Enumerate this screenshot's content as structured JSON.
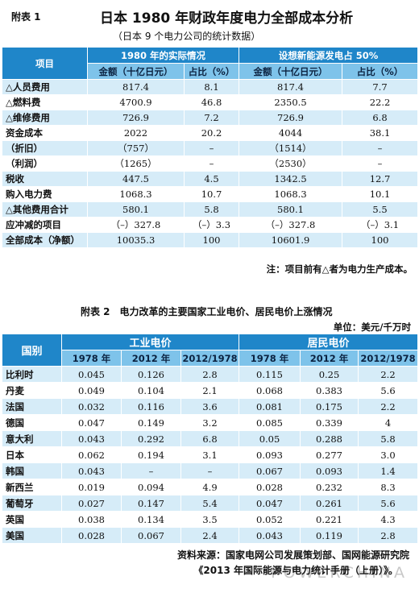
{
  "table1": {
    "tag": "附表 1",
    "title": "日本 1980 年财政年度电力全部成本分析",
    "subtitle": "（日本 9 个电力公司的统计数据）",
    "col_item": "项目",
    "group_a": "1980 年的实际情况",
    "group_b": "设想新能源发电占 50%",
    "sub_amount": "金额（十亿日元）",
    "sub_ratio": "占比（%）",
    "rows": [
      {
        "label": "△人员费用",
        "a1": "817.4",
        "a2": "8.1",
        "b1": "817.4",
        "b2": "7.7"
      },
      {
        "label": "△燃料费",
        "a1": "4700.9",
        "a2": "46.8",
        "b1": "2350.5",
        "b2": "22.2"
      },
      {
        "label": "△维修费用",
        "a1": "726.9",
        "a2": "7.2",
        "b1": "726.9",
        "b2": "6.8"
      },
      {
        "label": "资金成本",
        "a1": "2022",
        "a2": "20.2",
        "b1": "4044",
        "b2": "38.1"
      },
      {
        "label": "（折旧）",
        "a1": "（757）",
        "a2": "–",
        "b1": "（1514）",
        "b2": "–"
      },
      {
        "label": "（利润）",
        "a1": "（1265）",
        "a2": "–",
        "b1": "（2530）",
        "b2": "–"
      },
      {
        "label": "税收",
        "a1": "447.5",
        "a2": "4.5",
        "b1": "1342.5",
        "b2": "12.7"
      },
      {
        "label": "购入电力费",
        "a1": "1068.3",
        "a2": "10.7",
        "b1": "1068.3",
        "b2": "10.1"
      },
      {
        "label": "△其他费用合计",
        "a1": "580.1",
        "a2": "5.8",
        "b1": "580.1",
        "b2": "5.5"
      },
      {
        "label": "应冲减的项目",
        "a1": "（–）327.8",
        "a2": "（–）3.3",
        "b1": "（–）327.8",
        "b2": "（–）3.1"
      },
      {
        "label": "全部成本（净额）",
        "a1": "10035.3",
        "a2": "100",
        "b1": "10601.9",
        "b2": "100"
      }
    ],
    "note": "注：项目前有△者为电力生产成本。"
  },
  "table2": {
    "title": "附表 2　电力改革的主要国家工业电价、居民电价上涨情况",
    "unit": "单位：美元/千万时",
    "col_country": "国别",
    "group_ind": "工业电价",
    "group_res": "居民电价",
    "sub_1978": "1978 年",
    "sub_2012": "2012 年",
    "sub_ratio": "2012/1978",
    "rows": [
      {
        "country": "比利时",
        "i1": "0.045",
        "i2": "0.126",
        "i3": "2.8",
        "r1": "0.115",
        "r2": "0.25",
        "r3": "2.2"
      },
      {
        "country": "丹麦",
        "i1": "0.049",
        "i2": "0.104",
        "i3": "2.1",
        "r1": "0.068",
        "r2": "0.383",
        "r3": "5.6"
      },
      {
        "country": "法国",
        "i1": "0.032",
        "i2": "0.116",
        "i3": "3.6",
        "r1": "0.081",
        "r2": "0.175",
        "r3": "2.2"
      },
      {
        "country": "德国",
        "i1": "0.047",
        "i2": "0.149",
        "i3": "3.2",
        "r1": "0.085",
        "r2": "0.339",
        "r3": "4"
      },
      {
        "country": "意大利",
        "i1": "0.043",
        "i2": "0.292",
        "i3": "6.8",
        "r1": "0.05",
        "r2": "0.288",
        "r3": "5.8"
      },
      {
        "country": "日本",
        "i1": "0.062",
        "i2": "0.194",
        "i3": "3.1",
        "r1": "0.093",
        "r2": "0.277",
        "r3": "3.0"
      },
      {
        "country": "韩国",
        "i1": "0.043",
        "i2": "–",
        "i3": "–",
        "r1": "0.067",
        "r2": "0.093",
        "r3": "1.4"
      },
      {
        "country": "新西兰",
        "i1": "0.019",
        "i2": "0.094",
        "i3": "4.9",
        "r1": "0.028",
        "r2": "0.232",
        "r3": "8.3"
      },
      {
        "country": "葡萄牙",
        "i1": "0.027",
        "i2": "0.147",
        "i3": "5.4",
        "r1": "0.047",
        "r2": "0.261",
        "r3": "5.6"
      },
      {
        "country": "英国",
        "i1": "0.038",
        "i2": "0.134",
        "i3": "3.5",
        "r1": "0.052",
        "r2": "0.221",
        "r3": "4.3"
      },
      {
        "country": "美国",
        "i1": "0.028",
        "i2": "0.067",
        "i3": "2.4",
        "r1": "0.043",
        "r2": "0.119",
        "r3": "2.8"
      }
    ],
    "source_line1": "资料来源：国家电网公司发展策划部、国网能源研究院",
    "source_line2": "《2013 年国际能源与电力统计手册（上册）》。"
  },
  "watermark": "POWERCHINA",
  "colors": {
    "header_dark": "#1f86c9",
    "header_light": "#7ec3ea",
    "row_alt": "#d6ecf8"
  }
}
